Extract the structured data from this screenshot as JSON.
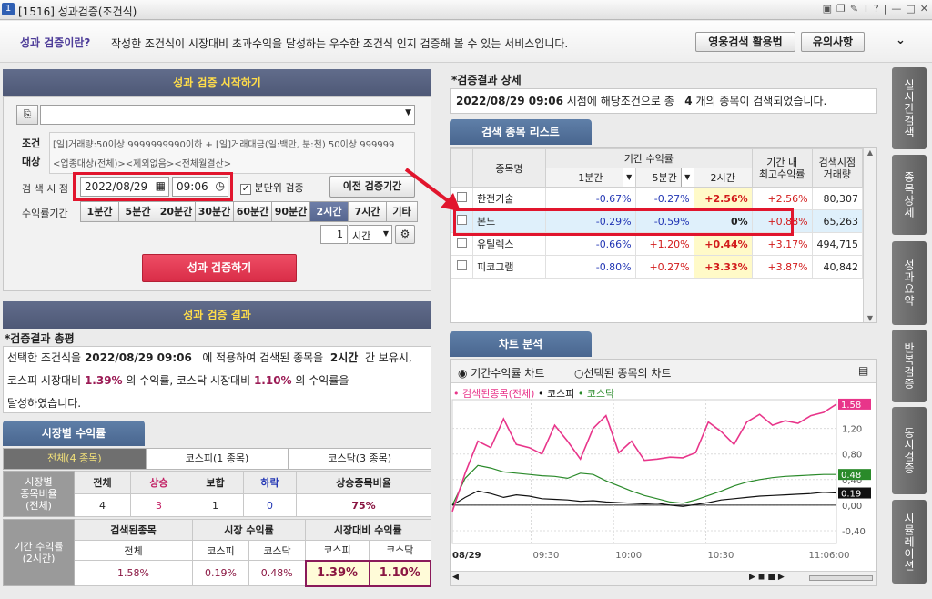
{
  "window": {
    "number": "1",
    "title": "[1516] 성과검증(조건식)"
  },
  "banner": {
    "question": "성과 검증이란?",
    "description": "작성한 조건식이 시장대비 초과수익을 달성하는 우수한 조건식 인지 검증해 볼 수 있는 서비스입니다.",
    "btn_usage": "영웅검색 활용법",
    "btn_notice": "유의사항"
  },
  "start": {
    "title": "성과 검증 시작하기",
    "cond_label": "조건\n대상",
    "cond_text_1": "[일]거래량:50이상 9999999990이하 + [일]거래대금(일:백만, 분:천) 50이상 999999",
    "cond_text_2": "<업종대상(전체)><제외없음><전체월결산>",
    "time_label": "검 색 시 점",
    "date": "2022/08/29",
    "time": "09:06",
    "minute_check": "분단위 검증",
    "prev_btn": "이전 검증기간",
    "period_label": "수익률기간",
    "periods": [
      "1분간",
      "5분간",
      "20분간",
      "30분간",
      "60분간",
      "90분간",
      "2시간",
      "7시간",
      "기타"
    ],
    "active_period": "2시간",
    "qty": "1",
    "unit": "시간",
    "run_btn": "성과 검증하기"
  },
  "result": {
    "title": "성과 검증 결과",
    "summary_title": "*검증결과 총평",
    "s1a": "선택한 조건식을",
    "s1_date": "2022/08/29 09:06",
    "s1b": "에 적용하여 검색된 종목을",
    "s1_period": "2시간",
    "s1c": "간 보유시,",
    "s2a": "코스피 시장대비",
    "s2_kospi": "1.39%",
    "s2b": "의 수익률, 코스닥 시장대비",
    "s2_kosdaq": "1.10%",
    "s2c": "의 수익률을",
    "s3": "달성하였습니다."
  },
  "market": {
    "tab": "시장별 수익률",
    "subtabs": [
      "전체(4 종목)",
      "코스피(1 종목)",
      "코스닥(3 종목)"
    ],
    "ratio_label": "시장별\n종목비율\n(전체)",
    "headers": [
      "전체",
      "상승",
      "보합",
      "하락",
      "상승종목비율"
    ],
    "values": [
      "4",
      "3",
      "1",
      "0",
      "75%"
    ],
    "ret_label": "기간 수익률\n(2시간)",
    "grp": [
      "검색된종목",
      "시장 수익률",
      "시장대비 수익률"
    ],
    "sub": [
      "전체",
      "코스피",
      "코스닥",
      "코스피",
      "코스닥"
    ],
    "rets": [
      "1.58%",
      "0.19%",
      "0.48%",
      "1.39%",
      "1.10%"
    ]
  },
  "detail": {
    "title": "*검증결과 상세",
    "date": "2022/08/29 09:06",
    "t1": "시점에 해당조건으로 총",
    "count": "4",
    "t2": "개의 종목이 검색되었습니다."
  },
  "list": {
    "tab": "검색 종목 리스트",
    "h_name": "종목명",
    "h_period": "기간 수익률",
    "h_1m": "1분간",
    "h_5m": "5분간",
    "h_2h": "2시간",
    "h_max": "기간 내\n최고수익률",
    "h_vol": "검색시점\n거래량",
    "rows": [
      {
        "name": "한전기술",
        "r1": "-0.67%",
        "r5": "-0.27%",
        "r2h": "+2.56%",
        "max": "+2.56%",
        "vol": "80,307"
      },
      {
        "name": "본느",
        "r1": "-0.29%",
        "r5": "-0.59%",
        "r2h": "0%",
        "max": "+0.88%",
        "vol": "65,263"
      },
      {
        "name": "유틸렉스",
        "r1": "-0.66%",
        "r5": "+1.20%",
        "r2h": "+0.44%",
        "max": "+3.17%",
        "vol": "494,715"
      },
      {
        "name": "피코그램",
        "r1": "-0.80%",
        "r5": "+0.27%",
        "r2h": "+3.33%",
        "max": "+3.87%",
        "vol": "40,842"
      }
    ]
  },
  "chart": {
    "tab": "차트 분석",
    "radio1": "기간수익률 차트",
    "radio2": "선택된 종목의 차트",
    "legend": [
      "검색된종목(전체)",
      "코스피",
      "코스닥"
    ],
    "colors": {
      "searched": "#e8358a",
      "kospi": "#111111",
      "kosdaq": "#2a8a2a"
    },
    "end_labels": [
      "1.58",
      "0.48",
      "0.19"
    ]
  },
  "chart_data": {
    "type": "line",
    "x_ticks": [
      "08/29",
      "09:30",
      "10:00",
      "10:30",
      "11:06:00"
    ],
    "y_ticks": [
      "1,20",
      "0,80",
      "0,40",
      "0,00",
      "-0,40"
    ],
    "ylim": [
      -0.6,
      1.65
    ],
    "series": [
      {
        "name": "검색된종목(전체)",
        "values": [
          -0.1,
          0.5,
          1.0,
          0.9,
          1.35,
          0.95,
          0.9,
          0.8,
          1.25,
          1.0,
          0.72,
          1.2,
          1.4,
          0.82,
          1.0,
          0.7,
          0.72,
          0.75,
          0.74,
          0.82,
          1.3,
          1.15,
          0.95,
          1.3,
          1.42,
          1.25,
          1.32,
          1.28,
          1.4,
          1.45,
          1.58
        ]
      },
      {
        "name": "코스피",
        "values": [
          0.0,
          0.12,
          0.22,
          0.18,
          0.12,
          0.16,
          0.14,
          0.1,
          0.09,
          0.08,
          0.06,
          0.07,
          0.05,
          0.04,
          0.03,
          0.02,
          0.03,
          0.0,
          -0.02,
          0.01,
          0.04,
          0.08,
          0.1,
          0.12,
          0.14,
          0.15,
          0.16,
          0.17,
          0.18,
          0.2,
          0.19
        ]
      },
      {
        "name": "코스닥",
        "values": [
          0.0,
          0.42,
          0.62,
          0.58,
          0.52,
          0.5,
          0.48,
          0.46,
          0.45,
          0.42,
          0.5,
          0.48,
          0.38,
          0.3,
          0.22,
          0.15,
          0.1,
          0.05,
          0.03,
          0.08,
          0.15,
          0.22,
          0.3,
          0.36,
          0.4,
          0.43,
          0.45,
          0.46,
          0.47,
          0.48,
          0.48
        ]
      }
    ]
  },
  "sidetabs": [
    "실시간검색",
    "종목상세",
    "성과요약",
    "반복검증",
    "동시검증",
    "시뮬레이션"
  ]
}
